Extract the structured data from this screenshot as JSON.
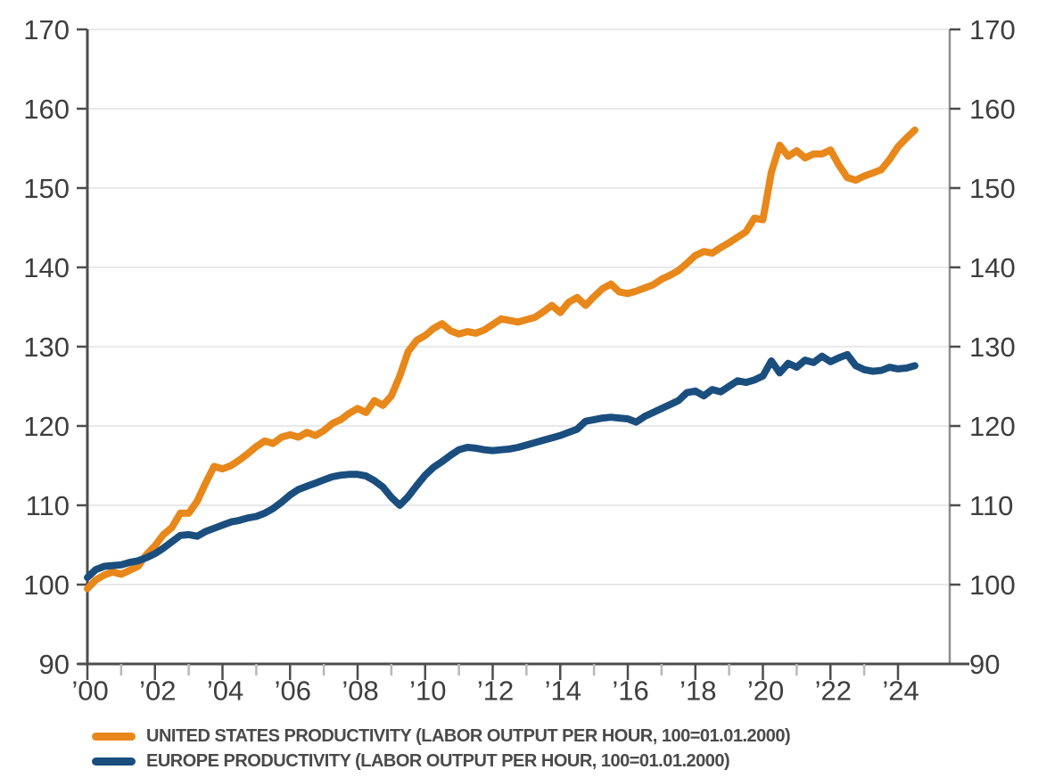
{
  "chart_data": {
    "type": "line",
    "title": "",
    "grid": "horizontal",
    "legend_position": "bottom-left",
    "y_axis": {
      "sides": "both",
      "range": [
        90,
        170
      ],
      "ticks": [
        90,
        100,
        110,
        120,
        130,
        140,
        150,
        160,
        170
      ]
    },
    "x_axis": {
      "range": [
        2000,
        2025.5
      ],
      "major_tick_years": [
        2000,
        2002,
        2004,
        2006,
        2008,
        2010,
        2012,
        2014,
        2016,
        2018,
        2020,
        2022,
        2024
      ],
      "major_tick_labels": [
        "’00",
        "’02",
        "’04",
        "’06",
        "’08",
        "’10",
        "’12",
        "’14",
        "’16",
        "’18",
        "’20",
        "’22",
        "’24"
      ],
      "minor_tick_years": [
        2001,
        2003,
        2005,
        2007,
        2009,
        2011,
        2013,
        2015,
        2017,
        2019,
        2021,
        2023
      ]
    },
    "series": [
      {
        "name": "UNITED STATES PRODUCTIVITY (LABOR OUTPUT PER HOUR, 100=01.01.2000)",
        "color": "#E8871A",
        "points": [
          [
            2000.0,
            99.5
          ],
          [
            2000.25,
            100.6
          ],
          [
            2000.5,
            101.2
          ],
          [
            2000.75,
            101.6
          ],
          [
            2001.0,
            101.3
          ],
          [
            2001.25,
            101.8
          ],
          [
            2001.5,
            102.3
          ],
          [
            2001.75,
            103.8
          ],
          [
            2002.0,
            104.9
          ],
          [
            2002.25,
            106.3
          ],
          [
            2002.5,
            107.2
          ],
          [
            2002.75,
            109.0
          ],
          [
            2003.0,
            109.0
          ],
          [
            2003.25,
            110.5
          ],
          [
            2003.5,
            112.8
          ],
          [
            2003.75,
            114.9
          ],
          [
            2004.0,
            114.6
          ],
          [
            2004.25,
            115.0
          ],
          [
            2004.5,
            115.7
          ],
          [
            2004.75,
            116.5
          ],
          [
            2005.0,
            117.4
          ],
          [
            2005.25,
            118.1
          ],
          [
            2005.5,
            117.8
          ],
          [
            2005.75,
            118.6
          ],
          [
            2006.0,
            118.9
          ],
          [
            2006.25,
            118.6
          ],
          [
            2006.5,
            119.2
          ],
          [
            2006.75,
            118.8
          ],
          [
            2007.0,
            119.4
          ],
          [
            2007.25,
            120.3
          ],
          [
            2007.5,
            120.8
          ],
          [
            2007.75,
            121.6
          ],
          [
            2008.0,
            122.2
          ],
          [
            2008.25,
            121.7
          ],
          [
            2008.5,
            123.2
          ],
          [
            2008.75,
            122.6
          ],
          [
            2009.0,
            123.8
          ],
          [
            2009.25,
            126.3
          ],
          [
            2009.5,
            129.4
          ],
          [
            2009.75,
            130.8
          ],
          [
            2010.0,
            131.4
          ],
          [
            2010.25,
            132.3
          ],
          [
            2010.5,
            132.9
          ],
          [
            2010.75,
            132.0
          ],
          [
            2011.0,
            131.6
          ],
          [
            2011.25,
            131.9
          ],
          [
            2011.5,
            131.7
          ],
          [
            2011.75,
            132.1
          ],
          [
            2012.0,
            132.8
          ],
          [
            2012.25,
            133.5
          ],
          [
            2012.5,
            133.3
          ],
          [
            2012.75,
            133.1
          ],
          [
            2013.0,
            133.4
          ],
          [
            2013.25,
            133.7
          ],
          [
            2013.5,
            134.4
          ],
          [
            2013.75,
            135.2
          ],
          [
            2014.0,
            134.3
          ],
          [
            2014.25,
            135.6
          ],
          [
            2014.5,
            136.2
          ],
          [
            2014.75,
            135.2
          ],
          [
            2015.0,
            136.3
          ],
          [
            2015.25,
            137.3
          ],
          [
            2015.5,
            137.9
          ],
          [
            2015.75,
            136.9
          ],
          [
            2016.0,
            136.7
          ],
          [
            2016.25,
            137.0
          ],
          [
            2016.5,
            137.4
          ],
          [
            2016.75,
            137.8
          ],
          [
            2017.0,
            138.5
          ],
          [
            2017.25,
            139.0
          ],
          [
            2017.5,
            139.6
          ],
          [
            2017.75,
            140.5
          ],
          [
            2018.0,
            141.5
          ],
          [
            2018.25,
            142.0
          ],
          [
            2018.5,
            141.8
          ],
          [
            2018.75,
            142.5
          ],
          [
            2019.0,
            143.1
          ],
          [
            2019.25,
            143.8
          ],
          [
            2019.5,
            144.5
          ],
          [
            2019.75,
            146.2
          ],
          [
            2020.0,
            146.0
          ],
          [
            2020.25,
            152.0
          ],
          [
            2020.5,
            155.4
          ],
          [
            2020.75,
            154.0
          ],
          [
            2021.0,
            154.7
          ],
          [
            2021.25,
            153.8
          ],
          [
            2021.5,
            154.3
          ],
          [
            2021.75,
            154.3
          ],
          [
            2022.0,
            154.8
          ],
          [
            2022.25,
            152.9
          ],
          [
            2022.5,
            151.3
          ],
          [
            2022.75,
            151.0
          ],
          [
            2023.0,
            151.5
          ],
          [
            2023.25,
            151.9
          ],
          [
            2023.5,
            152.3
          ],
          [
            2023.75,
            153.6
          ],
          [
            2024.0,
            155.2
          ],
          [
            2024.25,
            156.3
          ],
          [
            2024.5,
            157.3
          ]
        ]
      },
      {
        "name": "EUROPE PRODUCTIVITY (LABOR OUTPUT PER HOUR, 100=01.01.2000)",
        "color": "#1A4E7E",
        "points": [
          [
            2000.0,
            100.9
          ],
          [
            2000.25,
            101.9
          ],
          [
            2000.5,
            102.3
          ],
          [
            2000.75,
            102.4
          ],
          [
            2001.0,
            102.5
          ],
          [
            2001.25,
            102.8
          ],
          [
            2001.5,
            103.0
          ],
          [
            2001.75,
            103.4
          ],
          [
            2002.0,
            103.9
          ],
          [
            2002.25,
            104.6
          ],
          [
            2002.5,
            105.4
          ],
          [
            2002.75,
            106.2
          ],
          [
            2003.0,
            106.3
          ],
          [
            2003.25,
            106.1
          ],
          [
            2003.5,
            106.7
          ],
          [
            2003.75,
            107.1
          ],
          [
            2004.0,
            107.5
          ],
          [
            2004.25,
            107.9
          ],
          [
            2004.5,
            108.1
          ],
          [
            2004.75,
            108.4
          ],
          [
            2005.0,
            108.6
          ],
          [
            2005.25,
            109.0
          ],
          [
            2005.5,
            109.6
          ],
          [
            2005.75,
            110.4
          ],
          [
            2006.0,
            111.3
          ],
          [
            2006.25,
            112.0
          ],
          [
            2006.5,
            112.4
          ],
          [
            2006.75,
            112.8
          ],
          [
            2007.0,
            113.2
          ],
          [
            2007.25,
            113.6
          ],
          [
            2007.5,
            113.8
          ],
          [
            2007.75,
            113.9
          ],
          [
            2008.0,
            113.9
          ],
          [
            2008.25,
            113.7
          ],
          [
            2008.5,
            113.1
          ],
          [
            2008.75,
            112.3
          ],
          [
            2009.0,
            111.0
          ],
          [
            2009.25,
            110.0
          ],
          [
            2009.5,
            111.1
          ],
          [
            2009.75,
            112.5
          ],
          [
            2010.0,
            113.8
          ],
          [
            2010.25,
            114.8
          ],
          [
            2010.5,
            115.5
          ],
          [
            2010.75,
            116.3
          ],
          [
            2011.0,
            117.0
          ],
          [
            2011.25,
            117.3
          ],
          [
            2011.5,
            117.2
          ],
          [
            2011.75,
            117.0
          ],
          [
            2012.0,
            116.9
          ],
          [
            2012.25,
            117.0
          ],
          [
            2012.5,
            117.1
          ],
          [
            2012.75,
            117.3
          ],
          [
            2013.0,
            117.6
          ],
          [
            2013.25,
            117.9
          ],
          [
            2013.5,
            118.2
          ],
          [
            2013.75,
            118.5
          ],
          [
            2014.0,
            118.8
          ],
          [
            2014.25,
            119.2
          ],
          [
            2014.5,
            119.6
          ],
          [
            2014.75,
            120.6
          ],
          [
            2015.0,
            120.8
          ],
          [
            2015.25,
            121.0
          ],
          [
            2015.5,
            121.1
          ],
          [
            2015.75,
            121.0
          ],
          [
            2016.0,
            120.9
          ],
          [
            2016.25,
            120.5
          ],
          [
            2016.5,
            121.2
          ],
          [
            2016.75,
            121.7
          ],
          [
            2017.0,
            122.2
          ],
          [
            2017.25,
            122.7
          ],
          [
            2017.5,
            123.2
          ],
          [
            2017.75,
            124.2
          ],
          [
            2018.0,
            124.4
          ],
          [
            2018.25,
            123.8
          ],
          [
            2018.5,
            124.6
          ],
          [
            2018.75,
            124.3
          ],
          [
            2019.0,
            125.0
          ],
          [
            2019.25,
            125.7
          ],
          [
            2019.5,
            125.5
          ],
          [
            2019.75,
            125.8
          ],
          [
            2020.0,
            126.3
          ],
          [
            2020.25,
            128.2
          ],
          [
            2020.5,
            126.7
          ],
          [
            2020.75,
            127.9
          ],
          [
            2021.0,
            127.4
          ],
          [
            2021.25,
            128.3
          ],
          [
            2021.5,
            128.0
          ],
          [
            2021.75,
            128.8
          ],
          [
            2022.0,
            128.1
          ],
          [
            2022.25,
            128.6
          ],
          [
            2022.5,
            129.0
          ],
          [
            2022.75,
            127.6
          ],
          [
            2023.0,
            127.1
          ],
          [
            2023.25,
            126.9
          ],
          [
            2023.5,
            127.0
          ],
          [
            2023.75,
            127.4
          ],
          [
            2024.0,
            127.2
          ],
          [
            2024.25,
            127.3
          ],
          [
            2024.5,
            127.6
          ]
        ]
      }
    ]
  },
  "legend": {
    "us_label": "UNITED STATES PRODUCTIVITY (LABOR OUTPUT PER HOUR, 100=01.01.2000)",
    "europe_label": "EUROPE PRODUCTIVITY (LABOR OUTPUT PER HOUR, 100=01.01.2000)"
  },
  "colors": {
    "us_line": "#E8871A",
    "europe_line": "#1A4E7E",
    "gridline": "#E2E2E2",
    "axis": "#4D4D4D",
    "right_axis": "#8F8F8F",
    "minor_tick": "#B8B8B8",
    "axis_text": "#3E3E3E",
    "legend_text": "#4A4A4A",
    "background": "#FFFFFF"
  }
}
